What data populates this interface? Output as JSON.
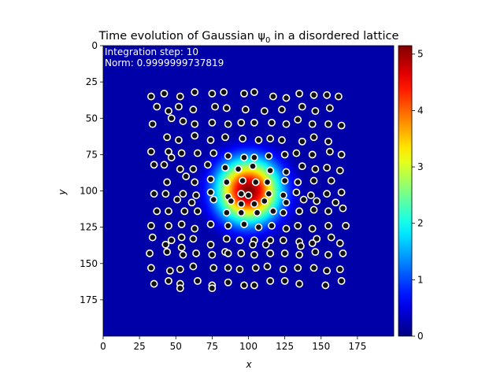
{
  "chart_data": {
    "type": "heatmap",
    "title": "Time evolution of Gaussian ψ",
    "title_subscript": "0",
    "title_suffix": " in a disordered lattice",
    "xlabel": "x",
    "ylabel": "y",
    "xlim": [
      0,
      200
    ],
    "ylim": [
      200,
      0
    ],
    "y_inverted": true,
    "x_ticks": [
      0,
      25,
      50,
      75,
      100,
      125,
      150,
      175
    ],
    "y_ticks": [
      0,
      25,
      50,
      75,
      100,
      125,
      150,
      175
    ],
    "colormap": "jet",
    "color_range": [
      0,
      5.15
    ],
    "colorbar_ticks": [
      0,
      1,
      2,
      3,
      4,
      5
    ],
    "annotations": [
      {
        "label": "Integration step",
        "value": "10"
      },
      {
        "label": "Norm",
        "value": "0.9999999737819"
      }
    ],
    "gaussian": {
      "center": [
        100,
        100
      ],
      "sigma": 15,
      "peak": 5.15
    },
    "lattice_sites": [
      [
        33,
        35
      ],
      [
        42,
        33
      ],
      [
        53,
        35
      ],
      [
        63,
        32
      ],
      [
        75,
        33
      ],
      [
        83,
        32
      ],
      [
        97,
        33
      ],
      [
        104,
        32
      ],
      [
        117,
        35
      ],
      [
        126,
        36
      ],
      [
        135,
        33
      ],
      [
        145,
        34
      ],
      [
        154,
        34
      ],
      [
        162,
        35
      ],
      [
        37,
        42
      ],
      [
        45,
        45
      ],
      [
        52,
        42
      ],
      [
        62,
        44
      ],
      [
        77,
        42
      ],
      [
        85,
        43
      ],
      [
        98,
        44
      ],
      [
        111,
        45
      ],
      [
        123,
        44
      ],
      [
        137,
        42
      ],
      [
        146,
        45
      ],
      [
        156,
        43
      ],
      [
        34,
        54
      ],
      [
        47,
        50
      ],
      [
        55,
        52
      ],
      [
        63,
        54
      ],
      [
        75,
        53
      ],
      [
        86,
        54
      ],
      [
        95,
        53
      ],
      [
        104,
        53
      ],
      [
        116,
        53
      ],
      [
        126,
        54
      ],
      [
        134,
        51
      ],
      [
        144,
        54
      ],
      [
        155,
        54
      ],
      [
        164,
        55
      ],
      [
        44,
        63
      ],
      [
        52,
        65
      ],
      [
        63,
        62
      ],
      [
        74,
        65
      ],
      [
        84,
        63
      ],
      [
        96,
        64
      ],
      [
        107,
        65
      ],
      [
        115,
        64
      ],
      [
        123,
        65
      ],
      [
        137,
        66
      ],
      [
        145,
        63
      ],
      [
        155,
        66
      ],
      [
        33,
        73
      ],
      [
        45,
        73
      ],
      [
        54,
        74
      ],
      [
        65,
        74
      ],
      [
        76,
        74
      ],
      [
        86,
        76
      ],
      [
        97,
        77
      ],
      [
        104,
        77
      ],
      [
        114,
        76
      ],
      [
        125,
        75
      ],
      [
        133,
        74
      ],
      [
        144,
        75
      ],
      [
        156,
        73
      ],
      [
        164,
        75
      ],
      [
        35,
        82
      ],
      [
        42,
        82
      ],
      [
        47,
        77
      ],
      [
        53,
        85
      ],
      [
        62,
        85
      ],
      [
        72,
        82
      ],
      [
        84,
        84
      ],
      [
        93,
        85
      ],
      [
        103,
        83
      ],
      [
        115,
        86
      ],
      [
        126,
        87
      ],
      [
        137,
        83
      ],
      [
        146,
        85
      ],
      [
        154,
        84
      ],
      [
        163,
        86
      ],
      [
        44,
        94
      ],
      [
        57,
        90
      ],
      [
        63,
        94
      ],
      [
        74,
        92
      ],
      [
        85,
        94
      ],
      [
        96,
        93
      ],
      [
        105,
        94
      ],
      [
        113,
        94
      ],
      [
        125,
        93
      ],
      [
        134,
        94
      ],
      [
        145,
        93
      ],
      [
        157,
        93
      ],
      [
        35,
        102
      ],
      [
        43,
        102
      ],
      [
        55,
        102
      ],
      [
        64,
        103
      ],
      [
        74,
        101
      ],
      [
        86,
        104
      ],
      [
        95,
        102
      ],
      [
        100,
        103
      ],
      [
        114,
        102
      ],
      [
        124,
        103
      ],
      [
        133,
        101
      ],
      [
        143,
        103
      ],
      [
        154,
        102
      ],
      [
        164,
        101
      ],
      [
        51,
        106
      ],
      [
        61,
        108
      ],
      [
        76,
        106
      ],
      [
        88,
        107
      ],
      [
        95,
        109
      ],
      [
        104,
        109
      ],
      [
        111,
        107
      ],
      [
        126,
        108
      ],
      [
        138,
        106
      ],
      [
        147,
        107
      ],
      [
        160,
        108
      ],
      [
        37,
        114
      ],
      [
        45,
        114
      ],
      [
        56,
        114
      ],
      [
        65,
        114
      ],
      [
        85,
        115
      ],
      [
        95,
        115
      ],
      [
        106,
        115
      ],
      [
        117,
        114
      ],
      [
        124,
        115
      ],
      [
        135,
        114
      ],
      [
        145,
        113
      ],
      [
        155,
        114
      ],
      [
        165,
        112
      ],
      [
        33,
        124
      ],
      [
        45,
        124
      ],
      [
        54,
        123
      ],
      [
        63,
        126
      ],
      [
        74,
        123
      ],
      [
        86,
        124
      ],
      [
        97,
        123
      ],
      [
        107,
        125
      ],
      [
        116,
        124
      ],
      [
        126,
        126
      ],
      [
        134,
        124
      ],
      [
        144,
        126
      ],
      [
        155,
        124
      ],
      [
        167,
        124
      ],
      [
        34,
        132
      ],
      [
        47,
        134
      ],
      [
        54,
        132
      ],
      [
        62,
        133
      ],
      [
        85,
        133
      ],
      [
        94,
        134
      ],
      [
        104,
        134
      ],
      [
        115,
        134
      ],
      [
        124,
        134
      ],
      [
        135,
        135
      ],
      [
        147,
        133
      ],
      [
        157,
        132
      ],
      [
        43,
        137
      ],
      [
        54,
        139
      ],
      [
        74,
        137
      ],
      [
        84,
        142
      ],
      [
        103,
        137
      ],
      [
        112,
        137
      ],
      [
        136,
        138
      ],
      [
        144,
        136
      ],
      [
        163,
        136
      ],
      [
        32,
        143
      ],
      [
        44,
        142
      ],
      [
        55,
        144
      ],
      [
        64,
        143
      ],
      [
        75,
        144
      ],
      [
        86,
        143
      ],
      [
        95,
        143
      ],
      [
        104,
        144
      ],
      [
        115,
        143
      ],
      [
        125,
        143
      ],
      [
        135,
        144
      ],
      [
        146,
        142
      ],
      [
        155,
        144
      ],
      [
        165,
        143
      ],
      [
        33,
        153
      ],
      [
        46,
        155
      ],
      [
        53,
        154
      ],
      [
        62,
        152
      ],
      [
        76,
        153
      ],
      [
        86,
        153
      ],
      [
        94,
        154
      ],
      [
        105,
        153
      ],
      [
        113,
        152
      ],
      [
        124,
        154
      ],
      [
        134,
        153
      ],
      [
        145,
        153
      ],
      [
        154,
        155
      ],
      [
        163,
        154
      ],
      [
        45,
        162
      ],
      [
        53,
        164
      ],
      [
        65,
        162
      ],
      [
        75,
        165
      ],
      [
        86,
        163
      ],
      [
        97,
        165
      ],
      [
        104,
        165
      ],
      [
        115,
        162
      ],
      [
        125,
        162
      ],
      [
        135,
        164
      ],
      [
        153,
        165
      ],
      [
        164,
        162
      ],
      [
        35,
        164
      ],
      [
        53,
        167
      ],
      [
        75,
        167
      ]
    ]
  }
}
